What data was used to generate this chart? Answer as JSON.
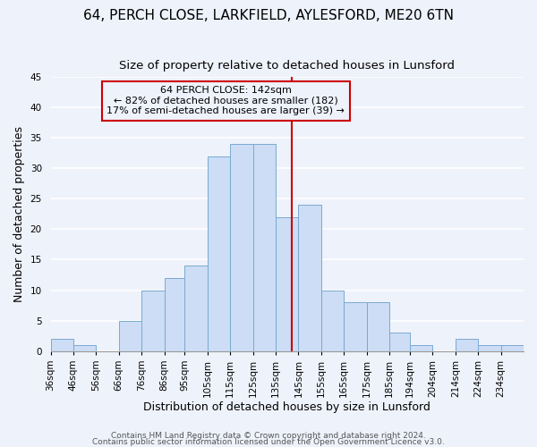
{
  "title": "64, PERCH CLOSE, LARKFIELD, AYLESFORD, ME20 6TN",
  "subtitle": "Size of property relative to detached houses in Lunsford",
  "xlabel": "Distribution of detached houses by size in Lunsford",
  "ylabel": "Number of detached properties",
  "bar_labels": [
    "36sqm",
    "46sqm",
    "56sqm",
    "66sqm",
    "76sqm",
    "86sqm",
    "95sqm",
    "105sqm",
    "115sqm",
    "125sqm",
    "135sqm",
    "145sqm",
    "155sqm",
    "165sqm",
    "175sqm",
    "185sqm",
    "194sqm",
    "204sqm",
    "214sqm",
    "224sqm",
    "234sqm"
  ],
  "bin_edges": [
    36,
    46,
    56,
    66,
    76,
    86,
    95,
    105,
    115,
    125,
    135,
    145,
    155,
    165,
    175,
    185,
    194,
    204,
    214,
    224,
    234,
    244
  ],
  "bar_heights": [
    2,
    1,
    0,
    5,
    10,
    12,
    14,
    32,
    34,
    34,
    22,
    24,
    10,
    8,
    8,
    3,
    1,
    0,
    2,
    1,
    1
  ],
  "bar_color": "#ccddf5",
  "bar_edge_color": "#7aaad0",
  "vline_x": 142,
  "vline_color": "#cc0000",
  "annotation_title": "64 PERCH CLOSE: 142sqm",
  "annotation_line1": "← 82% of detached houses are smaller (182)",
  "annotation_line2": "17% of semi-detached houses are larger (39) →",
  "annotation_box_edge_color": "#cc0000",
  "ylim": [
    0,
    45
  ],
  "yticks": [
    0,
    5,
    10,
    15,
    20,
    25,
    30,
    35,
    40,
    45
  ],
  "footer1": "Contains HM Land Registry data © Crown copyright and database right 2024.",
  "footer2": "Contains public sector information licensed under the Open Government Licence v3.0.",
  "bg_color": "#eef2fb",
  "grid_color": "#ffffff",
  "title_fontsize": 11,
  "subtitle_fontsize": 9.5,
  "axis_label_fontsize": 9,
  "tick_fontsize": 7.5,
  "footer_fontsize": 6.5
}
